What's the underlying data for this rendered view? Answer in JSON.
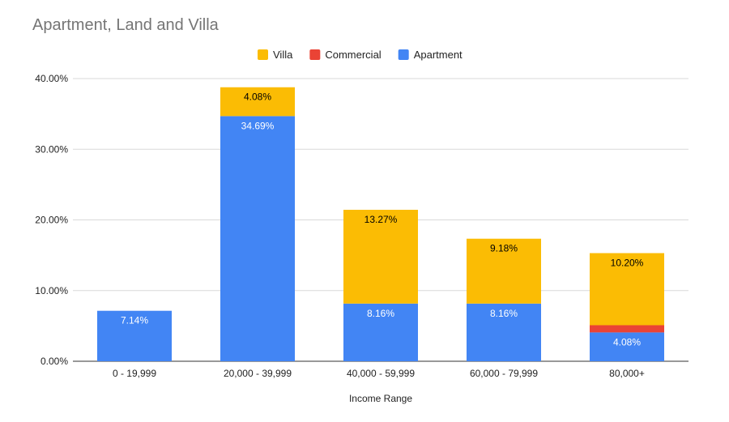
{
  "chart_data": {
    "type": "bar",
    "stacked": true,
    "title": "Apartment, Land and Villa",
    "xlabel": "Income Range",
    "ylabel": "",
    "ylim": [
      0,
      40
    ],
    "yticks": [
      "0.00%",
      "10.00%",
      "20.00%",
      "30.00%",
      "40.00%"
    ],
    "ytick_values": [
      0,
      10,
      20,
      30,
      40
    ],
    "grid": true,
    "legend_position": "top",
    "legend": [
      "Villa",
      "Commercial",
      "Apartment"
    ],
    "categories": [
      "0 - 19,999",
      "20,000 - 39,999",
      "40,000 - 59,999",
      "60,000 - 79,999",
      "80,000+"
    ],
    "series": [
      {
        "name": "Apartment",
        "color": "#4285f4",
        "label_color": "#ffffff",
        "values": [
          7.14,
          34.69,
          8.16,
          8.16,
          4.08
        ],
        "labels": [
          "7.14%",
          "34.69%",
          "8.16%",
          "8.16%",
          "4.08%"
        ]
      },
      {
        "name": "Commercial",
        "color": "#ea4335",
        "label_color": "#ea4335",
        "values": [
          0,
          0,
          0,
          0,
          1.02
        ],
        "labels": [
          null,
          null,
          null,
          null,
          "1.02%"
        ]
      },
      {
        "name": "Villa",
        "color": "#fbbc04",
        "label_color": "#000000",
        "values": [
          0,
          4.08,
          13.27,
          9.18,
          10.2
        ],
        "labels": [
          null,
          "4.08%",
          "13.27%",
          "9.18%",
          "10.20%"
        ]
      }
    ]
  }
}
